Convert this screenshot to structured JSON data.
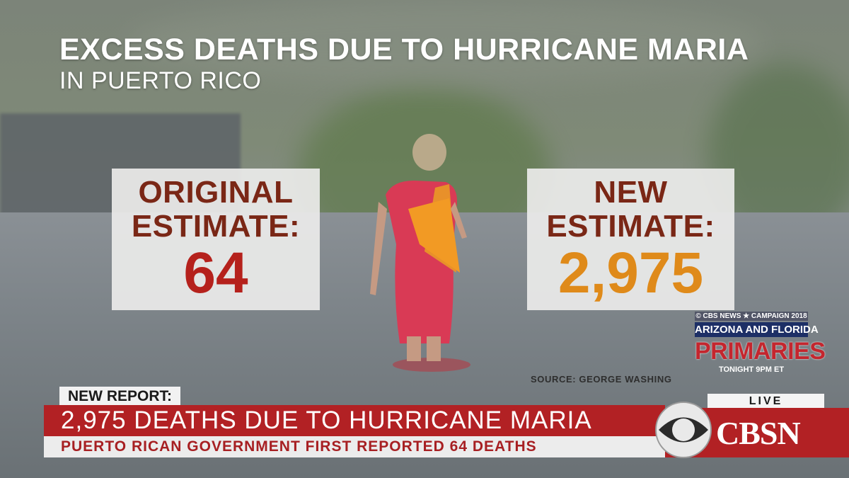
{
  "graphic": {
    "title": "EXCESS DEATHS DUE TO HURRICANE MARIA",
    "subtitle": "IN PUERTO RICO",
    "original": {
      "label": "ORIGINAL\nESTIMATE:",
      "value": "64",
      "color": "#b5211c"
    },
    "new": {
      "label": "NEW\nESTIMATE:",
      "value": "2,975",
      "color": "#df8a1a"
    },
    "source": "SOURCE: GEORGE WASHING"
  },
  "promo": {
    "top": "© CBS NEWS ★ CAMPAIGN 2018",
    "mid": "ARIZONA AND FLORIDA",
    "main": "PRIMARIES",
    "time": "TONIGHT 9PM ET"
  },
  "lower_third": {
    "tag": "NEW REPORT:",
    "headline": "2,975 DEATHS DUE TO HURRICANE MARIA",
    "subline": "PUERTO RICAN GOVERNMENT FIRST REPORTED 64 DEATHS",
    "accent": "#b22124"
  },
  "network": {
    "live": "LIVE",
    "name": "CBSN",
    "logo_icon": "cbs-eye-icon"
  }
}
